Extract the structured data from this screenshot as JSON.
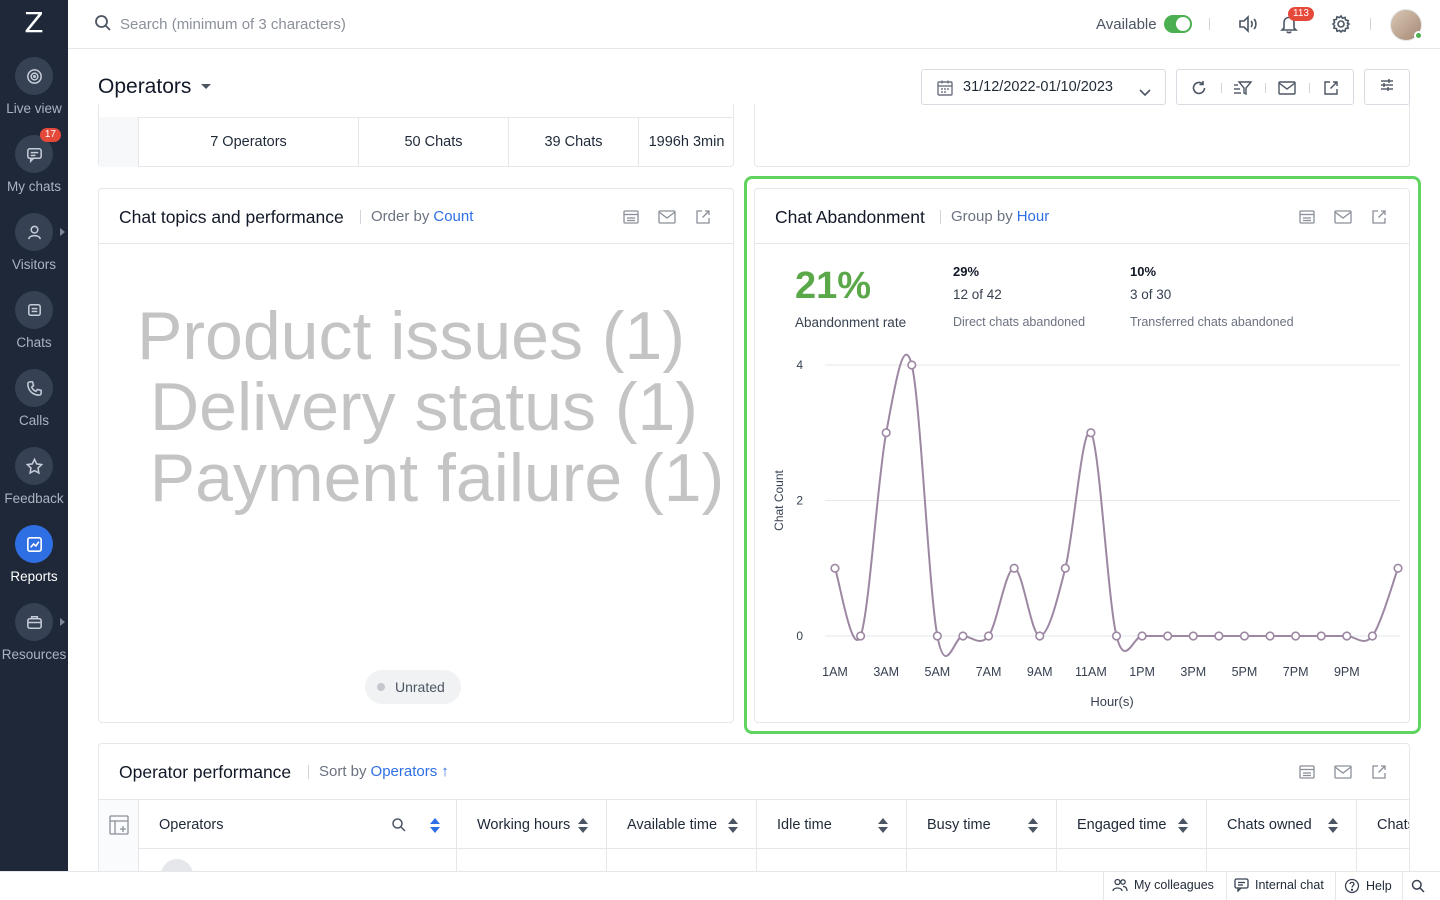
{
  "app": {
    "logo": "Z"
  },
  "sidebar": {
    "items": [
      {
        "label": "Live view",
        "icon": "live-view-icon"
      },
      {
        "label": "My chats",
        "icon": "my-chats-icon",
        "badge": "17"
      },
      {
        "label": "Visitors",
        "icon": "visitors-icon"
      },
      {
        "label": "Chats",
        "icon": "chats-icon"
      },
      {
        "label": "Calls",
        "icon": "calls-icon"
      },
      {
        "label": "Feedback",
        "icon": "feedback-icon"
      },
      {
        "label": "Reports",
        "icon": "reports-icon",
        "active": true
      },
      {
        "label": "Resources",
        "icon": "resources-icon"
      }
    ]
  },
  "topbar": {
    "search_placeholder": "Search (minimum of 3 characters)",
    "status_label": "Available",
    "status_on": true,
    "notification_count": "113"
  },
  "page": {
    "title": "Operators",
    "date_range": "31/12/2022-01/10/2023"
  },
  "summary": {
    "cells": [
      "7 Operators",
      "50 Chats",
      "39 Chats",
      "1996h 3min"
    ]
  },
  "topics_card": {
    "title": "Chat topics and performance",
    "order_label": "Order by",
    "order_value": "Count",
    "words": [
      "Product issues (1)",
      "Delivery status (1)",
      "Payment failure (1)"
    ],
    "legend": "Unrated"
  },
  "abandon_card": {
    "title": "Chat Abandonment",
    "group_label": "Group by",
    "group_value": "Hour",
    "rate": "21%",
    "rate_label": "Abandonment rate",
    "direct_pct": "29%",
    "direct_num": "12 of 42",
    "direct_label": "Direct chats abandoned",
    "transfer_pct": "10%",
    "transfer_num": "3 of 30",
    "transfer_label": "Transferred chats abandoned"
  },
  "chart_data": {
    "type": "line",
    "xlabel": "Hour(s)",
    "ylabel": "Chat Count",
    "ylim": [
      0,
      4
    ],
    "yticks": [
      0,
      2,
      4
    ],
    "x": [
      "1AM",
      "2AM",
      "3AM",
      "4AM",
      "5AM",
      "6AM",
      "7AM",
      "8AM",
      "9AM",
      "10AM",
      "11AM",
      "12PM",
      "1PM",
      "2PM",
      "3PM",
      "4PM",
      "5PM",
      "6PM",
      "7PM",
      "8PM",
      "9PM",
      "10PM",
      "11PM"
    ],
    "xtick_labels": [
      "1AM",
      "3AM",
      "5AM",
      "7AM",
      "9AM",
      "11AM",
      "1PM",
      "3PM",
      "5PM",
      "7PM",
      "9PM"
    ],
    "series": [
      {
        "values": [
          1,
          0,
          3,
          4,
          0,
          0,
          0,
          1,
          0,
          1,
          3,
          0,
          0,
          0,
          0,
          0,
          0,
          0,
          0,
          0,
          0,
          0,
          1
        ]
      }
    ],
    "color": "#9d88a3",
    "grid": true
  },
  "operator_card": {
    "title": "Operator performance",
    "sort_label": "Sort by",
    "sort_value": "Operators",
    "columns": [
      "Operators",
      "Working hours",
      "Available time",
      "Idle time",
      "Busy time",
      "Engaged time",
      "Chats owned",
      "Chats"
    ]
  },
  "footer": {
    "colleagues": "My colleagues",
    "internal_chat": "Internal chat",
    "help": "Help"
  },
  "colors": {
    "accent": "#2f6fe4",
    "highlight": "#5fd45f",
    "rate": "#5aa849",
    "sidebar": "#1e2838"
  }
}
